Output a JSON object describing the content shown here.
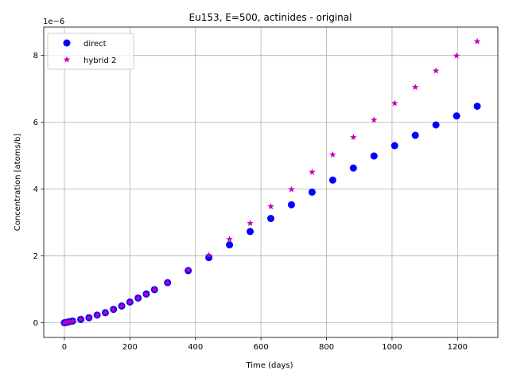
{
  "chart_data": {
    "type": "scatter",
    "title": "Eu153, E=500, actinides - original",
    "xlabel": "Time (days)",
    "ylabel": "Concentration [atoms/b]",
    "y_offset_label": "1e−6",
    "xlim": [
      -63,
      1323
    ],
    "ylim": [
      -0.44,
      8.85
    ],
    "y_multiplier": "1e-6",
    "xticks": [
      0,
      200,
      400,
      600,
      800,
      1000,
      1200
    ],
    "yticks": [
      0,
      2,
      4,
      6,
      8
    ],
    "grid": true,
    "legend_position": "upper-left",
    "series": [
      {
        "name": "direct",
        "marker": "circle",
        "color": "#0000ff",
        "x": [
          0,
          7,
          14,
          25,
          50,
          75,
          100,
          125,
          150,
          175,
          200,
          225,
          250,
          275,
          315,
          378,
          441,
          504,
          567,
          630,
          693,
          756,
          819,
          882,
          945,
          1008,
          1071,
          1134,
          1197,
          1260
        ],
        "y": [
          0.0,
          0.01,
          0.03,
          0.05,
          0.1,
          0.15,
          0.23,
          0.3,
          0.4,
          0.5,
          0.62,
          0.74,
          0.86,
          0.99,
          1.2,
          1.56,
          1.95,
          2.33,
          2.73,
          3.12,
          3.53,
          3.91,
          4.27,
          4.63,
          4.99,
          5.3,
          5.61,
          5.92,
          6.19,
          6.48
        ]
      },
      {
        "name": "hybrid 2",
        "marker": "star",
        "color": "#bf00bf",
        "x": [
          0,
          7,
          14,
          25,
          50,
          75,
          100,
          125,
          150,
          175,
          200,
          225,
          250,
          275,
          315,
          378,
          441,
          504,
          567,
          630,
          693,
          756,
          819,
          882,
          945,
          1008,
          1071,
          1134,
          1197,
          1260
        ],
        "y": [
          0.0,
          0.01,
          0.03,
          0.05,
          0.1,
          0.15,
          0.23,
          0.3,
          0.4,
          0.5,
          0.62,
          0.74,
          0.86,
          0.99,
          1.2,
          1.58,
          2.02,
          2.5,
          2.98,
          3.48,
          3.99,
          4.51,
          5.03,
          5.55,
          6.07,
          6.57,
          7.05,
          7.54,
          7.99,
          8.42
        ]
      }
    ]
  }
}
